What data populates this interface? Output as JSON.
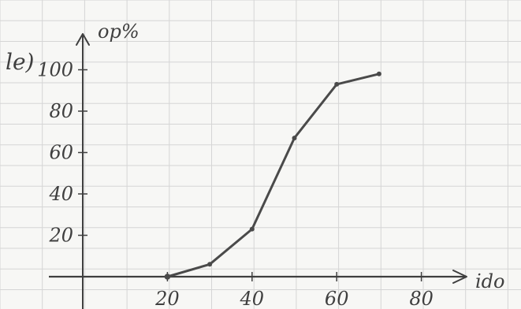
{
  "chart_data": {
    "type": "line",
    "panel_label": "le)",
    "ylabel": "op%",
    "xlabel": "ido",
    "x_ticks": [
      "20",
      "40",
      "60",
      "80"
    ],
    "y_ticks": [
      "20",
      "40",
      "60",
      "80",
      "100"
    ],
    "xlim": [
      0,
      100
    ],
    "ylim": [
      0,
      100
    ],
    "grid": true,
    "legend": "none",
    "series": [
      {
        "x": [
          20,
          30,
          40,
          50,
          60,
          70
        ],
        "y": [
          0,
          6,
          23,
          67,
          93,
          98
        ]
      }
    ],
    "colors": {
      "ink": "#3f3f3f",
      "grid": "#d5d5d5",
      "paper": "#f7f7f5"
    }
  }
}
